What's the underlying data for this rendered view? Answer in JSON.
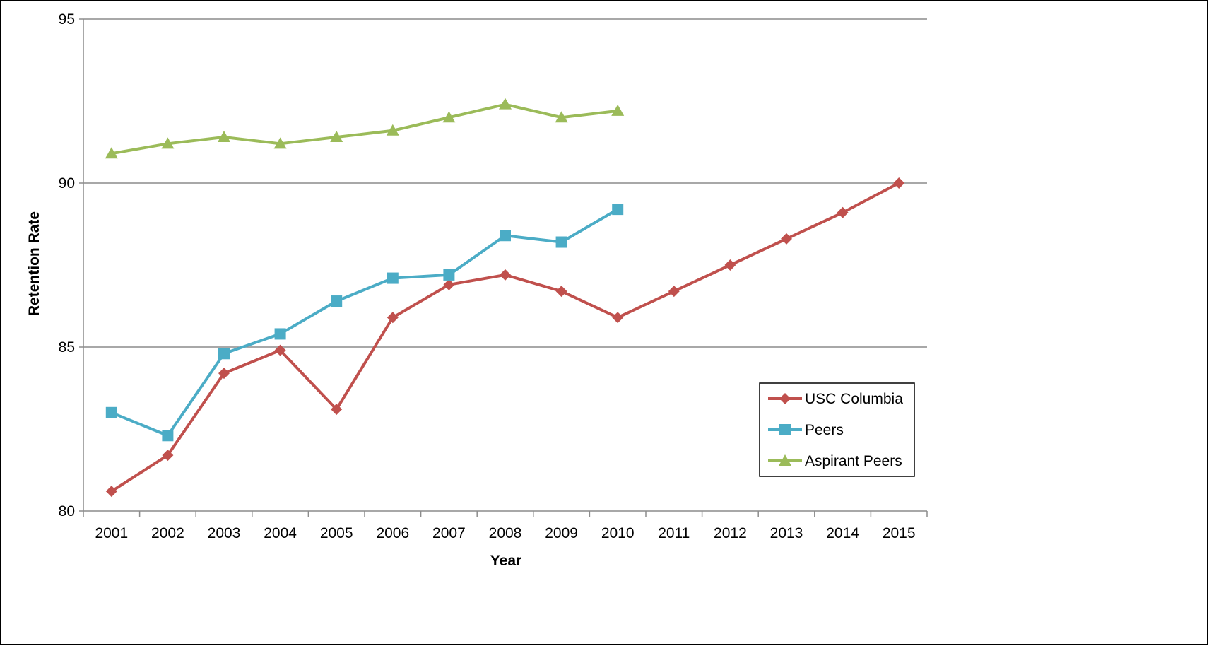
{
  "chart_data": {
    "type": "line",
    "title": "",
    "xlabel": "Year",
    "ylabel": "Retention Rate",
    "ylim": [
      80,
      95
    ],
    "yticks": [
      "80",
      "85",
      "90",
      "95"
    ],
    "categories": [
      "2001",
      "2002",
      "2003",
      "2004",
      "2005",
      "2006",
      "2007",
      "2008",
      "2009",
      "2010",
      "2011",
      "2012",
      "2013",
      "2014",
      "2015"
    ],
    "grid": "horizontal",
    "legend_position": "right",
    "series": [
      {
        "name": "USC Columbia",
        "color": "#C0504D",
        "marker": "diamond",
        "values": [
          80.6,
          81.7,
          84.2,
          84.9,
          83.1,
          85.9,
          86.9,
          87.2,
          86.7,
          85.9,
          86.7,
          87.5,
          88.3,
          89.1,
          90.0
        ]
      },
      {
        "name": "Peers",
        "color": "#4BACC6",
        "marker": "square",
        "values": [
          83.0,
          82.3,
          84.8,
          85.4,
          86.4,
          87.1,
          87.2,
          88.4,
          88.2,
          89.2,
          null,
          null,
          null,
          null,
          null
        ]
      },
      {
        "name": "Aspirant Peers",
        "color": "#9BBB59",
        "marker": "triangle",
        "values": [
          90.9,
          91.2,
          91.4,
          91.2,
          91.4,
          91.6,
          92.0,
          92.4,
          92.0,
          92.2,
          null,
          null,
          null,
          null,
          null
        ]
      }
    ]
  }
}
